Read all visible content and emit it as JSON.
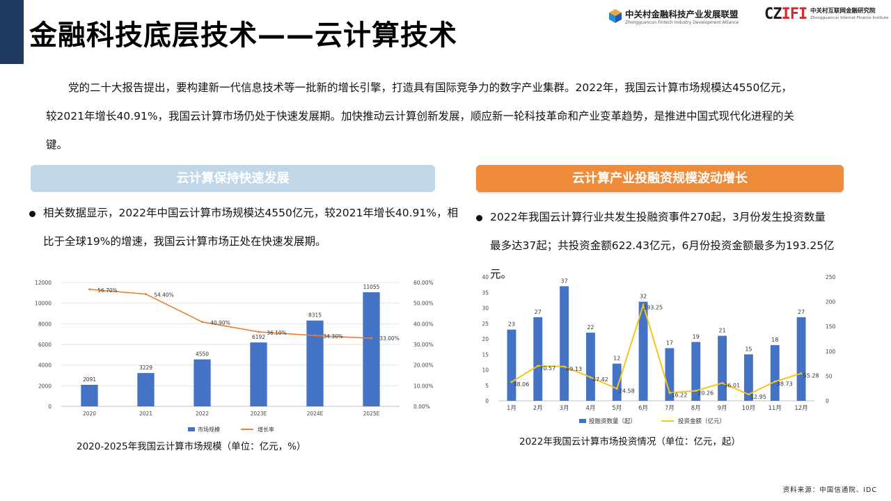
{
  "header": {
    "title": "金融科技底层技术——云计算技术",
    "logo1": {
      "name": "中关村金融科技产业发展联盟",
      "en": "Zhongguancun Fintech Industry Development Alliance"
    },
    "logo2": {
      "mark_left": "CZ",
      "mark_right": "IFI",
      "name": "中关村互联网金融研究院",
      "en": "Zhongguancun Internet Finance Institute"
    },
    "accent": "#1e3a5f"
  },
  "intro": {
    "text": "党的二十大报告提出，要构建新一代信息技术等一批新的增长引擎，打造具有国际竞争力的数字产业集群。2022年，我国云计算市场规模达4550亿元，较2021年增长40.91%，我国云计算市场仍处于快速发展期。加快推动云计算创新发展，顺应新一轮科技革命和产业变革趋势，是推进中国式现代化进程的关键。"
  },
  "left": {
    "header": "云计算保持快速发展",
    "header_color": "#c0d7ea",
    "bullet": "相关数据显示，2022年中国云计算市场规模达4550亿元，较2021年增长40.91%，相比于全球19%的增速，我国云计算市场正处在快速发展期。",
    "caption": "2020-2025年我国云计算市场规模（单位：亿元，%）"
  },
  "right": {
    "header": "云计算产业投融资规模波动增长",
    "header_color": "#ee8c3a",
    "bullet": "2022年我国云计算行业共发生投融资事件270起，3月份发生投资数量最多达37起；共投资金额622.43亿元，6月份投资金额最多为193.25亿元。",
    "caption": "2022年我国云计算市场投资情况（单位：亿元，起）"
  },
  "source": "资料来源：中国信通院、IDC",
  "chart_data": [
    {
      "type": "bar",
      "categories": [
        "2020",
        "2021",
        "2022",
        "2023E",
        "2024E",
        "2025E"
      ],
      "series": [
        {
          "name": "市场规模",
          "type": "bar",
          "axis": "left",
          "color": "#4472c4",
          "values": [
            2091,
            3229,
            4550,
            6192,
            8315,
            11055
          ],
          "labels": [
            "2091",
            "3229",
            "4550",
            "6192",
            "8315",
            "11055"
          ]
        },
        {
          "name": "增长率",
          "type": "line",
          "axis": "right",
          "color": "#ed7d31",
          "values": [
            56.7,
            54.4,
            40.9,
            36.1,
            34.3,
            33.0
          ],
          "labels": [
            "56.70%",
            "54.40%",
            "40.90%",
            "36.10%",
            "34.30%",
            "33.00%"
          ]
        }
      ],
      "left_axis": {
        "ylim": [
          0,
          12000
        ],
        "ticks": [
          "0",
          "2000",
          "4000",
          "6000",
          "8000",
          "10000",
          "12000"
        ]
      },
      "right_axis": {
        "ylim": [
          0,
          60
        ],
        "ticks": [
          "0.00%",
          "10.00%",
          "20.00%",
          "30.00%",
          "40.00%",
          "50.00%",
          "60.00%"
        ]
      },
      "grid": true,
      "legend_position": "bottom"
    },
    {
      "type": "bar",
      "categories": [
        "1月",
        "2月",
        "3月",
        "4月",
        "5月",
        "6月",
        "7月",
        "8月",
        "9月",
        "10月",
        "11月",
        "12月"
      ],
      "series": [
        {
          "name": "投融资数量（起）",
          "type": "bar",
          "axis": "left",
          "color": "#4472c4",
          "values": [
            23,
            27,
            37,
            22,
            12,
            32,
            17,
            19,
            21,
            15,
            18,
            27
          ],
          "labels": [
            "23",
            "27",
            "37",
            "22",
            "12",
            "32",
            "17",
            "19",
            "21",
            "15",
            "18",
            "27"
          ]
        },
        {
          "name": "投资金额（亿元）",
          "type": "line",
          "axis": "right",
          "color": "#f5c518",
          "values": [
            38.06,
            70.57,
            69.13,
            47.42,
            24.58,
            193.25,
            16.22,
            20.26,
            36.01,
            12.95,
            38.73,
            55.28
          ],
          "labels": [
            "38.06",
            "70.57",
            "69.13",
            "47.42",
            "24.58",
            "193.25",
            "16.22",
            "20.26",
            "36.01",
            "12.95",
            "38.73",
            "55.28"
          ]
        }
      ],
      "left_axis": {
        "ylim": [
          0,
          40
        ],
        "ticks": [
          "0",
          "5",
          "10",
          "15",
          "20",
          "25",
          "30",
          "35",
          "40"
        ]
      },
      "right_axis": {
        "ylim": [
          0,
          250
        ],
        "ticks": [
          "0",
          "50",
          "100",
          "150",
          "200",
          "250"
        ]
      },
      "grid": false,
      "legend_position": "bottom"
    }
  ]
}
